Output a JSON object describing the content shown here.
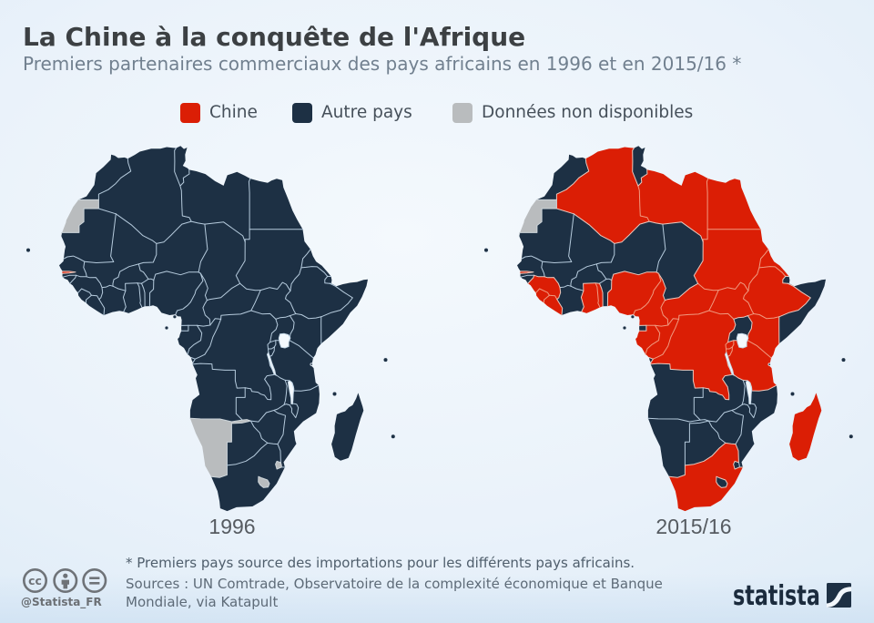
{
  "chart_data": {
    "type": "choropleth_map",
    "title": "La Chine à la conquête de l'Afrique",
    "subtitle": "Premiers partenaires commerciaux des pays africains en 1996 et en 2015/16 *",
    "legend_entries": [
      "Chine",
      "Autre pays",
      "Données non disponibles"
    ],
    "maps": [
      {
        "label": "1996",
        "chine": [
          "Gambie"
        ],
        "donnees_non_disponibles": [
          "Sahara occidental",
          "Namibie",
          "Lesotho",
          "Swaziland"
        ],
        "autre_pays": [
          "Afrique du Sud",
          "Algérie",
          "Angola",
          "Botswana",
          "Burkina Faso",
          "Burundi",
          "Bénin",
          "Cameroun",
          "Congo",
          "Côte d'Ivoire",
          "Djibouti",
          "Gabon",
          "Ghana",
          "Guinée",
          "Guinée équatoriale",
          "Guinée-Bissau",
          "Kenya",
          "Libye",
          "Libéria",
          "Madagascar",
          "Malawi",
          "Mali",
          "Maroc",
          "Mauritanie",
          "Mozambique",
          "Niger",
          "Nigéria",
          "Ouganda",
          "RD Congo",
          "Rwanda",
          "République centrafricaine",
          "Sierra Leone",
          "Somalie",
          "Soudan",
          "Soudan du Sud",
          "Sénégal",
          "Tanzanie",
          "Tchad",
          "Togo",
          "Tunisie",
          "Zambie",
          "Zimbabwe",
          "Égypte",
          "Érythrée",
          "Éthiopie"
        ]
      },
      {
        "label": "2015/16",
        "chine": [
          "Afrique du Sud",
          "Algérie",
          "Burundi",
          "Cameroun",
          "Congo",
          "Gabon",
          "Gambie",
          "Ghana",
          "Guinée",
          "Kenya",
          "Libye",
          "Libéria",
          "Madagascar",
          "Nigéria",
          "RD Congo",
          "Rwanda",
          "République centrafricaine",
          "Sierra Leone",
          "Soudan",
          "Soudan du Sud",
          "Tanzanie",
          "Togo",
          "Égypte",
          "Érythrée",
          "Éthiopie"
        ],
        "donnees_non_disponibles": [
          "Sahara occidental"
        ],
        "autre_pays": [
          "Angola",
          "Botswana",
          "Burkina Faso",
          "Bénin",
          "Côte d'Ivoire",
          "Djibouti",
          "Guinée équatoriale",
          "Guinée-Bissau",
          "Lesotho",
          "Malawi",
          "Mali",
          "Maroc",
          "Mauritanie",
          "Mozambique",
          "Namibie",
          "Niger",
          "Ouganda",
          "Somalie",
          "Swaziland",
          "Sénégal",
          "Tchad",
          "Tunisie",
          "Zambie",
          "Zimbabwe"
        ]
      }
    ]
  },
  "title": "La Chine à la conquête de l'Afrique",
  "subtitle": "Premiers partenaires commerciaux des pays africains en 1996 et en 2015/16 *",
  "legend": {
    "items": [
      {
        "id": "china",
        "label": "Chine",
        "color": "#db1e05"
      },
      {
        "id": "other",
        "label": "Autre pays",
        "color": "#1d3044"
      },
      {
        "id": "nodata",
        "label": "Données non disponibles",
        "color": "#b9bcbe"
      }
    ]
  },
  "map_styles": {
    "border_colors": {
      "china": "#f09a80",
      "other": "#b6cbdd",
      "nodata": "#ced6db",
      "mixed": "#e9c9bf"
    },
    "border_width": 1.0,
    "lake_fill": "#f4f9fd",
    "lake_stroke": "#c6d9e8",
    "island_fill": "#1d3044",
    "island_stroke": "#e8f1f9"
  },
  "maps": [
    {
      "id": "1996",
      "label": "1996",
      "countries": {
        "mar": "other",
        "esh": "nodata",
        "dza": "other",
        "tun": "other",
        "lby": "other",
        "egy": "other",
        "mrt": "other",
        "mli": "other",
        "ner": "other",
        "tcd": "other",
        "sdn": "other",
        "ssd": "other",
        "eri": "other",
        "dji": "other",
        "eth": "other",
        "som": "other",
        "sen": "other",
        "gmb": "china",
        "gnb": "other",
        "gin": "other",
        "sle": "other",
        "lbr": "other",
        "civ": "other",
        "gha": "other",
        "tgo": "other",
        "ben": "other",
        "bfa": "other",
        "nga": "other",
        "cmr": "other",
        "caf": "other",
        "gnq": "other",
        "gab": "other",
        "cog": "other",
        "cod": "other",
        "uga": "other",
        "ken": "other",
        "rwa": "other",
        "bdi": "other",
        "tza": "other",
        "ago": "other",
        "zmb": "other",
        "mwi": "other",
        "moz": "other",
        "zwe": "other",
        "nam": "nodata",
        "bwa": "other",
        "zaf": "other",
        "lso": "nodata",
        "swz": "nodata",
        "mdg": "other"
      }
    },
    {
      "id": "2015",
      "label": "2015/16",
      "countries": {
        "mar": "other",
        "esh": "nodata",
        "dza": "china",
        "tun": "other",
        "lby": "china",
        "egy": "china",
        "mrt": "other",
        "mli": "other",
        "ner": "other",
        "tcd": "other",
        "sdn": "china",
        "ssd": "china",
        "eri": "china",
        "dji": "other",
        "eth": "china",
        "som": "other",
        "sen": "other",
        "gmb": "china",
        "gnb": "other",
        "gin": "china",
        "sle": "china",
        "lbr": "china",
        "civ": "other",
        "gha": "china",
        "tgo": "china",
        "ben": "other",
        "bfa": "other",
        "nga": "china",
        "cmr": "china",
        "caf": "china",
        "gnq": "other",
        "gab": "china",
        "cog": "china",
        "cod": "china",
        "uga": "other",
        "ken": "china",
        "rwa": "china",
        "bdi": "china",
        "tza": "china",
        "ago": "other",
        "zmb": "other",
        "mwi": "other",
        "moz": "other",
        "zwe": "other",
        "nam": "other",
        "bwa": "other",
        "zaf": "china",
        "lso": "other",
        "swz": "other",
        "mdg": "china"
      }
    }
  ],
  "country_names": {
    "mar": "Maroc",
    "esh": "Sahara occidental",
    "dza": "Algérie",
    "tun": "Tunisie",
    "lby": "Libye",
    "egy": "Égypte",
    "mrt": "Mauritanie",
    "mli": "Mali",
    "ner": "Niger",
    "tcd": "Tchad",
    "sdn": "Soudan",
    "ssd": "Soudan du Sud",
    "eri": "Érythrée",
    "dji": "Djibouti",
    "eth": "Éthiopie",
    "som": "Somalie",
    "sen": "Sénégal",
    "gmb": "Gambie",
    "gnb": "Guinée-Bissau",
    "gin": "Guinée",
    "sle": "Sierra Leone",
    "lbr": "Libéria",
    "civ": "Côte d'Ivoire",
    "gha": "Ghana",
    "tgo": "Togo",
    "ben": "Bénin",
    "bfa": "Burkina Faso",
    "nga": "Nigéria",
    "cmr": "Cameroun",
    "caf": "République centrafricaine",
    "gnq": "Guinée équatoriale",
    "gab": "Gabon",
    "cog": "Congo",
    "cod": "RD Congo",
    "uga": "Ouganda",
    "ken": "Kenya",
    "rwa": "Rwanda",
    "bdi": "Burundi",
    "tza": "Tanzanie",
    "ago": "Angola",
    "zmb": "Zambie",
    "mwi": "Malawi",
    "moz": "Mozambique",
    "zwe": "Zimbabwe",
    "nam": "Namibie",
    "bwa": "Botswana",
    "zaf": "Afrique du Sud",
    "lso": "Lesotho",
    "swz": "Swaziland",
    "mdg": "Madagascar"
  },
  "island_names": {
    "cpv": "Cap-Vert",
    "bio": "Bioko",
    "stp": "Sao Tomé-et-Principe",
    "com": "Comores",
    "syc": "Seychelles",
    "mus": "Maurice",
    "zan": "Zanzibar"
  },
  "footnote": "* Premiers pays source des importations pour les différents pays africains.",
  "source": "Sources : UN Comtrade, Observatoire de la complexité économique et Banque Mondiale, via Katapult",
  "attribution": {
    "handle": "@Statista_FR",
    "brand": "statista"
  }
}
